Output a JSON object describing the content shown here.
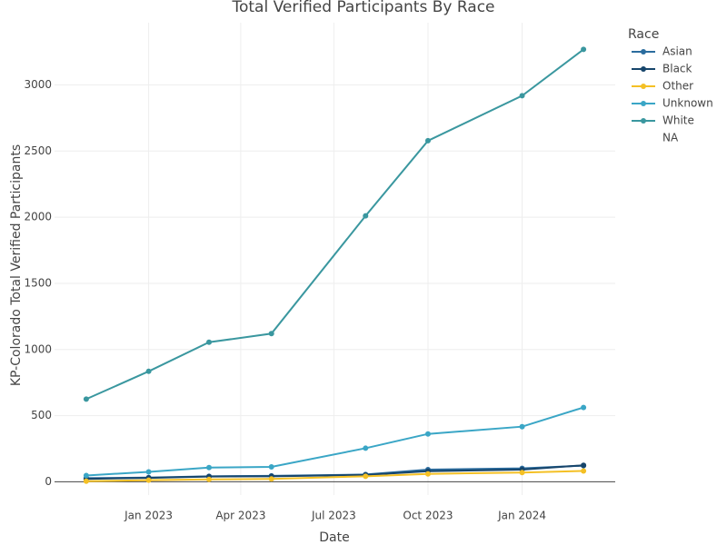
{
  "chart_data": {
    "type": "line",
    "title": "Total Verified Participants By Race",
    "x_label": "Date",
    "y_label": "KP-Colorado Total Verified Participants",
    "legend_title": "Race",
    "legend_position": "right",
    "grid": true,
    "x": [
      "2022-11",
      "2023-01",
      "2023-03",
      "2023-05",
      "2023-08",
      "2023-10",
      "2024-01",
      "2024-03"
    ],
    "xlim": [
      "2022-10",
      "2024-04"
    ],
    "xticks": [
      {
        "value": "2023-01",
        "label": "Jan 2023"
      },
      {
        "value": "2023-04",
        "label": "Apr 2023"
      },
      {
        "value": "2023-07",
        "label": "Jul 2023"
      },
      {
        "value": "2023-10",
        "label": "Oct 2023"
      },
      {
        "value": "2024-01",
        "label": "Jan 2024"
      }
    ],
    "ylim": [
      -100,
      3470
    ],
    "yticks": [
      0,
      500,
      1000,
      1500,
      2000,
      2500,
      3000
    ],
    "series": [
      {
        "name": "Asian",
        "color": "#2b6c9e",
        "values": [
          28,
          32,
          42,
          45,
          55,
          92,
          102,
          122
        ]
      },
      {
        "name": "Black",
        "color": "#17456b",
        "values": [
          22,
          30,
          40,
          42,
          52,
          80,
          92,
          125
        ]
      },
      {
        "name": "Other",
        "color": "#f4c025",
        "values": [
          5,
          12,
          18,
          22,
          42,
          60,
          70,
          82
        ]
      },
      {
        "name": "Unknown",
        "color": "#3aa6c6",
        "values": [
          48,
          75,
          108,
          113,
          254,
          362,
          417,
          562
        ]
      },
      {
        "name": "White",
        "color": "#3a979f",
        "values": [
          625,
          835,
          1055,
          1120,
          2010,
          2578,
          2918,
          3268
        ]
      },
      {
        "name": "NA",
        "values": [
          null,
          null,
          null,
          null,
          null,
          null,
          null,
          null
        ]
      }
    ]
  }
}
